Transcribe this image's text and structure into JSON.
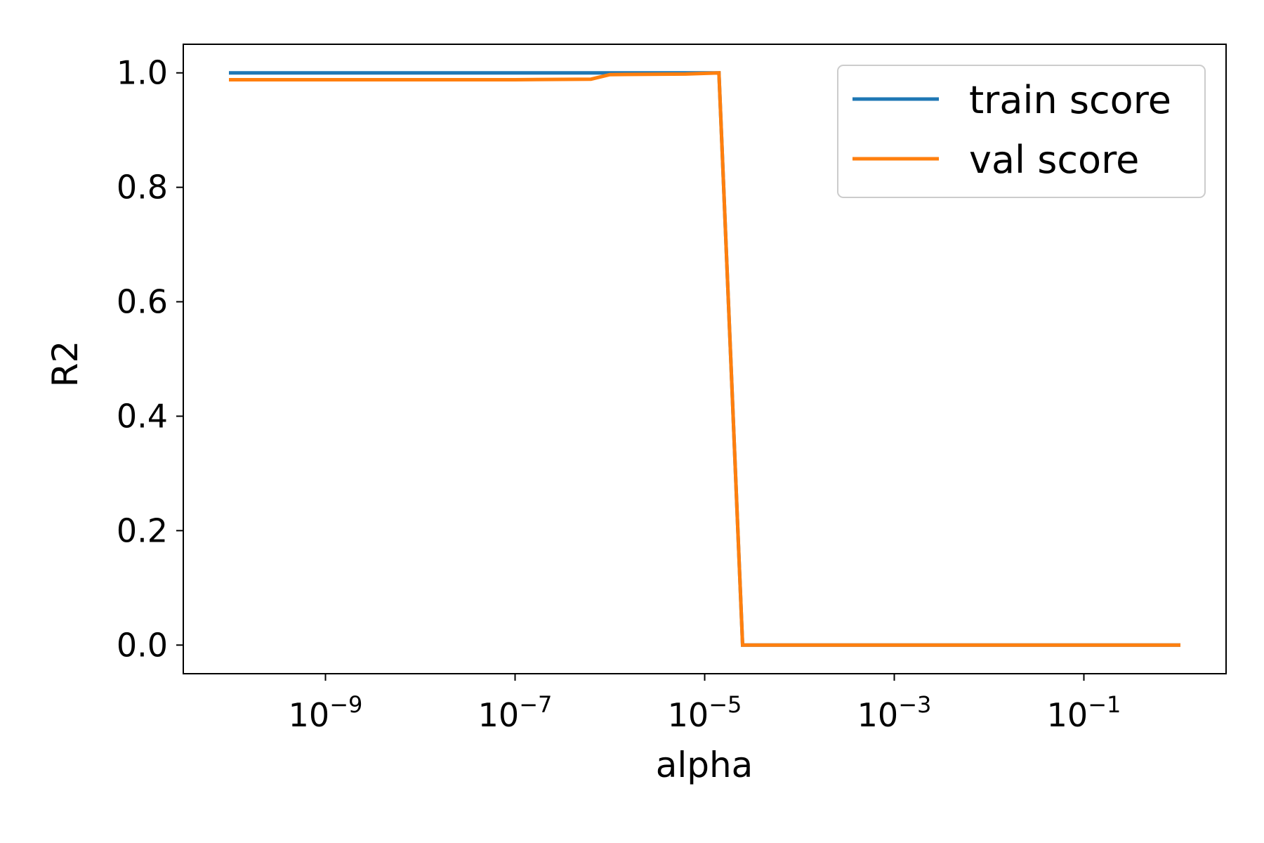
{
  "chart_data": {
    "type": "line",
    "title": "",
    "xlabel": "alpha",
    "ylabel": "R2",
    "xscale": "log",
    "x_exponent_range": [
      -10.5,
      0.5
    ],
    "ylim": [
      -0.05,
      1.05
    ],
    "xtick_base": "10",
    "xticks": [
      {
        "exp": -9,
        "label": "−9"
      },
      {
        "exp": -7,
        "label": "−7"
      },
      {
        "exp": -5,
        "label": "−5"
      },
      {
        "exp": -3,
        "label": "−3"
      },
      {
        "exp": -1,
        "label": "−1"
      }
    ],
    "yticks": [
      {
        "value": 0.0,
        "label": "0.0"
      },
      {
        "value": 0.2,
        "label": "0.2"
      },
      {
        "value": 0.4,
        "label": "0.4"
      },
      {
        "value": 0.6,
        "label": "0.6"
      },
      {
        "value": 0.8,
        "label": "0.8"
      },
      {
        "value": 1.0,
        "label": "1.0"
      }
    ],
    "legend_position": "top-right",
    "series": [
      {
        "name": "train score",
        "color": "#1f77b4",
        "log10_alpha": [
          -10,
          -8,
          -6.2,
          -6,
          -5.2,
          -4.85,
          -4.6,
          -4,
          -2,
          0
        ],
        "values": [
          1.0,
          1.0,
          1.0,
          1.0,
          1.0,
          1.0,
          0.0,
          0.0,
          0.0,
          0.0
        ]
      },
      {
        "name": "val score",
        "color": "#ff7f0e",
        "log10_alpha": [
          -10,
          -9,
          -8,
          -7,
          -6.2,
          -6,
          -5.2,
          -4.85,
          -4.6,
          -4,
          -3,
          -2,
          -1,
          0
        ],
        "values": [
          0.988,
          0.988,
          0.988,
          0.988,
          0.989,
          0.997,
          0.998,
          1.0,
          0.0,
          0.0,
          0.0,
          0.0,
          0.0,
          0.0
        ]
      }
    ]
  }
}
